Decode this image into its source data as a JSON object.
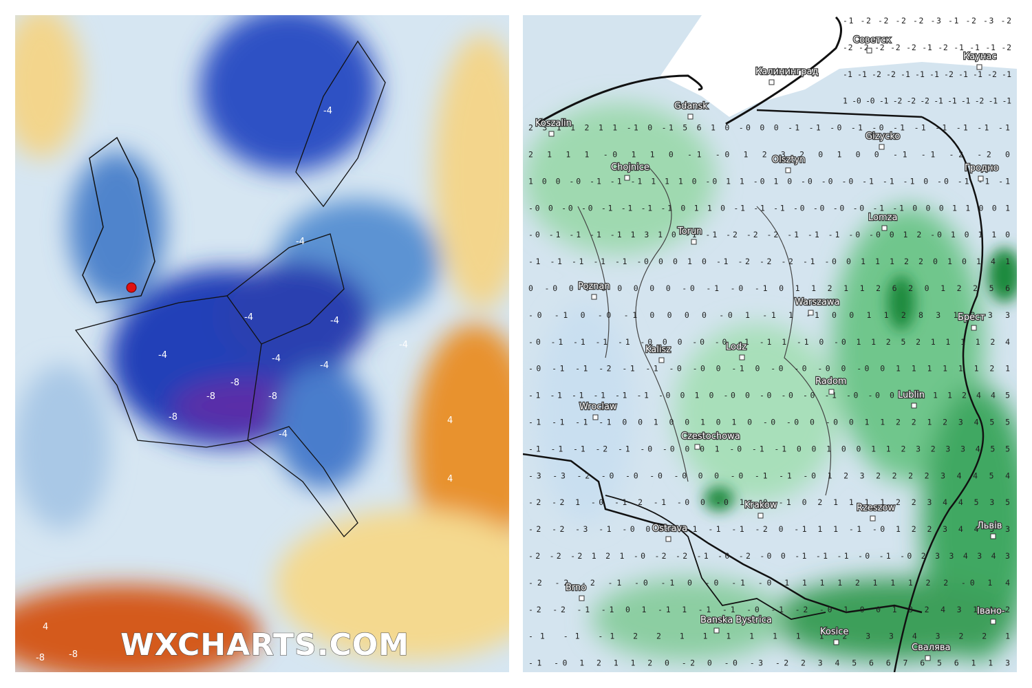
{
  "left_map": {
    "watermark": "WXCHARTS.COM",
    "contour_labels": [
      "-4",
      "-4",
      "-4",
      "-4",
      "-4",
      "-4",
      "-4",
      "-4",
      "-8",
      "-8",
      "-8",
      "-8",
      "-8",
      "4",
      "4",
      "-4",
      "4",
      "-8"
    ]
  },
  "right_map": {
    "cities": [
      "Советск",
      "Калининград",
      "Каунас",
      "Gdansk",
      "Koszalin",
      "Gizycko",
      "Olsztyn",
      "Chojnice",
      "Гродно",
      "Lomza",
      "Torun",
      "Poznan",
      "Warszawa",
      "Брест",
      "Kalisz",
      "Lodz",
      "Radom",
      "Wroclaw",
      "Lublin",
      "Czestochowa",
      "Krakow",
      "Rzeszow",
      "Ostrava",
      "Львів",
      "Brno",
      "Banska Bystrica",
      "Kosice",
      "Свалява",
      "Івано-"
    ],
    "grid_rows": [
      "-1 -2 -2 -2 -2 -3 -1 -2 -3 -2",
      "-2 -2 -2 -2 -2 -1 -2 -1 -1 -1 -2",
      "-1 -1 -2 -2 -1 -1 -1 -2 -1 -1 -2 -1",
      "1 -0 -0 -1 -2 -2 -2 -1 -1 -1 -2 -1 -1",
      "2 3 1 1 2 1 1 -1 0 -1 5 6 1 0 -0 0 0 -1 -1 -0 -1 -0 -1 -1 -1 -1 -1 -1",
      "2 1 1 1 -0 1 1 0 -1 -0 1 2 3 2 0 1 0 0 -1 -1 -2 -2 0",
      "1 0 0 -0 -1 -1 -1 1 1 1 0 -0 1 1 -0 1 0 -0 -0 -0 -1 -1 -1 0 -0 -1 -1 -1",
      "-0 0 -0 -0 -1 -1 -1 -1 0 1 1 0 -1 -1 -1 -0 -0 -0 -0 -1 -1 0 0 0 1 1 0 0 1",
      "-0 -1 -1 -1 -1 1 3 1 0 -1 -1 -2 -2 -2 -1 -1 -1 -0 -0 0 1 2 -0 1 0 1 1 0",
      "-1 -1 -1 -1 -1 -0 0 0 1 0 -1 -2 -2 -2 -1 -0 0 1 1 1 2 2 0 1 0 1 4 1",
      "0 -0 0 0 0 0 0 0 0 -0 -1 -0 -1 0 1 1 2 1 1 2 6 2 0 1 2 2 5 6",
      "-0 -1 0 -0 -1 0 0 0 0 -0 1 -1 1 -1 0 0 1 1 2 8 3 1 2 3 3",
      "-0 -1 -1 -1 -1 -0 0 0 -0 -0 -1 -1 1 -1 0 -0 1 1 2 5 2 1 1 1 1 2 4",
      "-0 -1 -1 -2 -1 -1 -0 -0 0 -1 0 -0 -0 -0 0 -0 0 1 1 1 1 1 1 2 1",
      "-1 -1 -1 -1 -1 -1 -0 0 1 0 -0 0 -0 -0 -0 -1 -0 -0 0 1 1 1 1 2 4 4 5",
      "-1 -1 -1 -1 0 0 1 0 0 1 0 1 0 -0 -0 0 -0 0 1 1 2 2 1 2 3 4 5 5",
      "-1 -1 -1 -2 -1 -0 -0 0 0 1 -0 -1 -1 0 0 1 0 0 1 1 2 3 2 3 3 4 5 5",
      "-3 -3 -2 -0 -0 -0 -0 0 0 -0 -1 -1 -0 1 2 3 2 2 2 2 3 4 4 5 4",
      "-2 -2 1 -0 -1 2 -1 -0 0 -0 1 -0 -1 0 2 1 1 1 1 2 2 3 4 4 5 3 5",
      "-2 -2 -3 -1 -0 0 -0 -1 -1 -1 -2 0 -1 1 1 -1 -0 1 2 2 3 4 4 5 3",
      "-2 -2 -2 1 2 1 -0 -2 -2 -1 -0 -2 -0 0 -1 -1 -1 -0 -1 -0 2 3 3 4 3 4 3",
      "-2 -2 -2 -1 -0 -1 0 -0 -1 -0 1 1 1 1 2 1 1 1 2 2 -0 1 4",
      "-2 -2 -1 -1 0 1 -1 1 -1 -1 -0 -1 -2 -0 1 0 0 1 3 2 4 3 1 1 2",
      "-1 -1 -1 2 2 1 1 1 1 1 1 1 2 3 3 4 3 2 2 1",
      "-1 -0 1 2 1 1 2 0 -2 0 -0 -3 -2 2 3 4 5 6 6 7 6 5 6 1 1 3"
    ]
  }
}
